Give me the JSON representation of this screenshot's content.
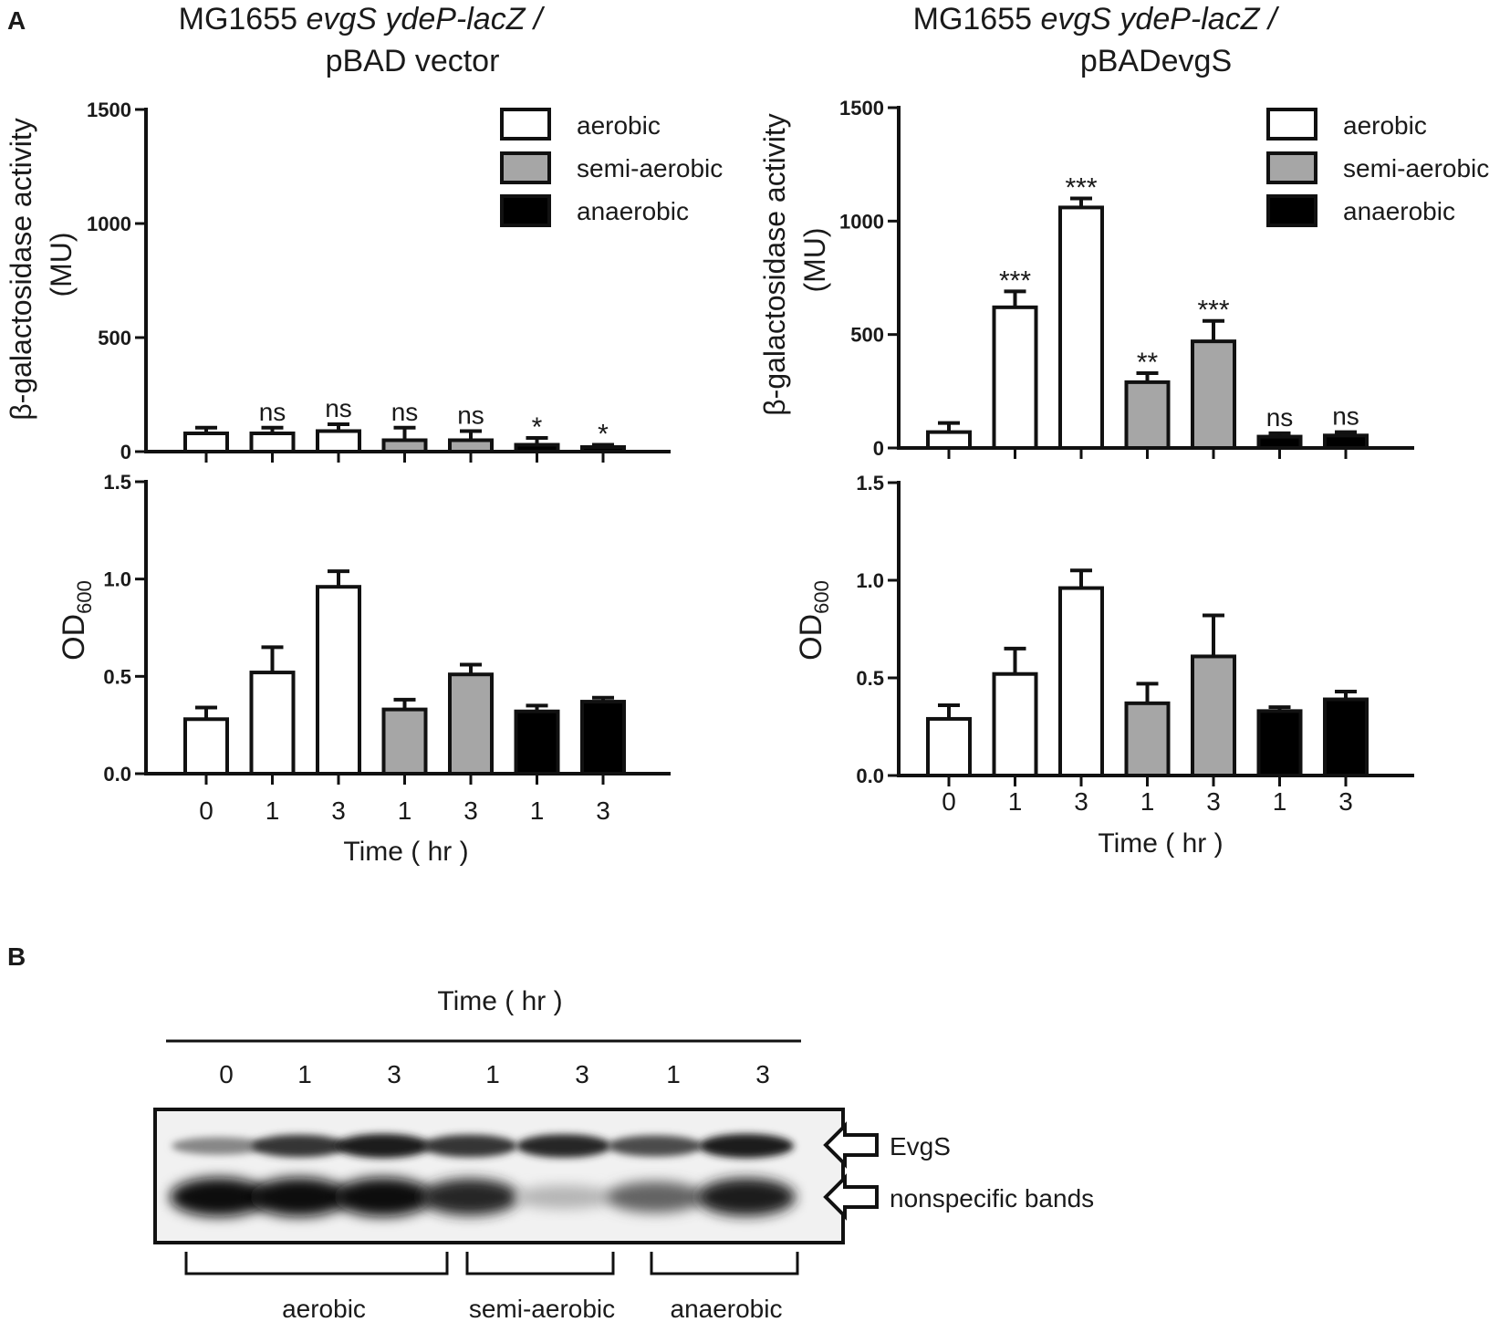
{
  "panel_labels": {
    "a": "A",
    "b": "B"
  },
  "time_axis_label": "Time ( hr )",
  "time_ticks": [
    "0",
    "1",
    "3",
    "1",
    "3",
    "1",
    "3"
  ],
  "conditions": [
    "aerobic",
    "aerobic",
    "aerobic",
    "semi-aerobic",
    "semi-aerobic",
    "anaerobic",
    "anaerobic"
  ],
  "legend": [
    {
      "label": "aerobic",
      "color": "#ffffff"
    },
    {
      "label": "semi-aerobic",
      "color": "#a6a6a6"
    },
    {
      "label": "anaerobic",
      "color": "#000000"
    }
  ],
  "left_title": {
    "line1_pre": "MG1655 ",
    "line1_it": "evgS ydeP-lacZ /",
    "line2": "pBAD vector"
  },
  "right_title": {
    "line1_pre": "MG1655 ",
    "line1_it": "evgS ydeP-lacZ /",
    "line2": "pBADevgS"
  },
  "ylabel_galactosidase": {
    "line1": "β-galactosidase activity",
    "line2": "(MU)"
  },
  "ylabel_od": {
    "main": "OD",
    "sub": "600"
  },
  "chart_data": [
    {
      "id": "left_top",
      "type": "bar",
      "categories": [
        "0",
        "1",
        "3",
        "1",
        "3",
        "1",
        "3"
      ],
      "values": [
        80,
        80,
        90,
        50,
        50,
        30,
        20
      ],
      "errors": [
        25,
        25,
        30,
        55,
        40,
        30,
        10
      ],
      "annotations": [
        "",
        "ns",
        "ns",
        "ns",
        "ns",
        "*",
        "*"
      ],
      "ylim": [
        0,
        1500
      ],
      "yticks": [
        0,
        500,
        1000,
        1500
      ]
    },
    {
      "id": "left_bottom",
      "type": "bar",
      "categories": [
        "0",
        "1",
        "3",
        "1",
        "3",
        "1",
        "3"
      ],
      "values": [
        0.28,
        0.52,
        0.96,
        0.33,
        0.51,
        0.32,
        0.37
      ],
      "errors": [
        0.06,
        0.13,
        0.08,
        0.05,
        0.05,
        0.03,
        0.02
      ],
      "ylim": [
        0,
        1.5
      ],
      "yticks": [
        0.0,
        0.5,
        1.0,
        1.5
      ]
    },
    {
      "id": "right_top",
      "type": "bar",
      "categories": [
        "0",
        "1",
        "3",
        "1",
        "3",
        "1",
        "3"
      ],
      "values": [
        70,
        620,
        1060,
        290,
        470,
        50,
        55
      ],
      "errors": [
        40,
        70,
        40,
        40,
        90,
        15,
        15
      ],
      "annotations": [
        "",
        "***",
        "***",
        "**",
        "***",
        "ns",
        "ns"
      ],
      "ylim": [
        0,
        1500
      ],
      "yticks": [
        0,
        500,
        1000,
        1500
      ]
    },
    {
      "id": "right_bottom",
      "type": "bar",
      "categories": [
        "0",
        "1",
        "3",
        "1",
        "3",
        "1",
        "3"
      ],
      "values": [
        0.29,
        0.52,
        0.96,
        0.37,
        0.61,
        0.33,
        0.39
      ],
      "errors": [
        0.07,
        0.13,
        0.09,
        0.1,
        0.21,
        0.02,
        0.04
      ],
      "ylim": [
        0,
        1.5
      ],
      "yticks": [
        0.0,
        0.5,
        1.0,
        1.5
      ]
    }
  ],
  "blot": {
    "time_label": "Time ( hr )",
    "lanes": [
      "0",
      "1",
      "3",
      "1",
      "3",
      "1",
      "3"
    ],
    "band_labels": {
      "evgs": "EvgS",
      "nonspecific": "nonspecific bands"
    },
    "groups": [
      "aerobic",
      "semi-aerobic",
      "anaerobic"
    ],
    "evgs_intensity": [
      0.45,
      0.8,
      0.9,
      0.8,
      0.85,
      0.7,
      0.9
    ],
    "nonspecific_intensity": [
      0.95,
      0.95,
      0.95,
      0.85,
      0.25,
      0.6,
      0.9
    ]
  }
}
